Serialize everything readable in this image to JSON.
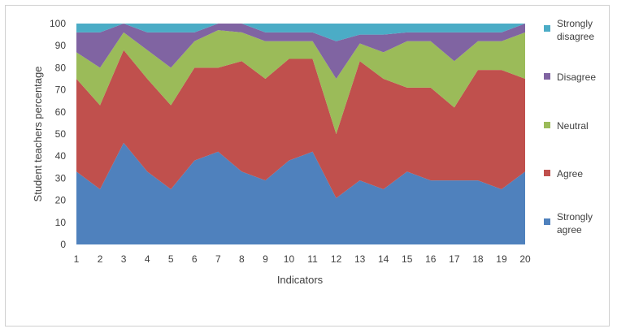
{
  "chart_data": {
    "type": "area",
    "stacked": true,
    "title": "",
    "xlabel": "Indicators",
    "ylabel": "Student teachers percentage",
    "ylim": [
      0,
      100
    ],
    "yticks": [
      0,
      10,
      20,
      30,
      40,
      50,
      60,
      70,
      80,
      90,
      100
    ],
    "x": [
      1,
      2,
      3,
      4,
      5,
      6,
      7,
      8,
      9,
      10,
      11,
      12,
      13,
      14,
      15,
      16,
      17,
      18,
      19,
      20
    ],
    "grid": false,
    "legend_position": "right",
    "series": [
      {
        "name": "Strongly agree",
        "color": "#4F81BD",
        "values": [
          33,
          25,
          46,
          33,
          25,
          38,
          42,
          33,
          29,
          38,
          42,
          21,
          29,
          25,
          33,
          29,
          29,
          29,
          25,
          33
        ]
      },
      {
        "name": "Agree",
        "color": "#C0504D",
        "values": [
          42,
          38,
          42,
          42,
          38,
          42,
          38,
          50,
          46,
          46,
          42,
          29,
          54,
          50,
          38,
          42,
          33,
          50,
          54,
          42
        ]
      },
      {
        "name": "Neutral",
        "color": "#9BBB59",
        "values": [
          12,
          17,
          8,
          13,
          17,
          12,
          17,
          13,
          17,
          8,
          8,
          25,
          8,
          12,
          21,
          21,
          21,
          13,
          13,
          21
        ]
      },
      {
        "name": "Disagree",
        "color": "#8064A2",
        "values": [
          9,
          16,
          4,
          8,
          16,
          4,
          3,
          4,
          4,
          4,
          4,
          17,
          4,
          8,
          4,
          4,
          13,
          4,
          4,
          4
        ]
      },
      {
        "name": "Strongly disagree",
        "color": "#4BACC6",
        "values": [
          4,
          4,
          0,
          4,
          4,
          4,
          0,
          0,
          4,
          4,
          4,
          8,
          5,
          5,
          4,
          4,
          4,
          4,
          4,
          0
        ]
      }
    ],
    "legend": [
      {
        "line1": "Strongly",
        "line2": "disagree",
        "series_index": 4
      },
      {
        "line1": "Disagree",
        "line2": "",
        "series_index": 3
      },
      {
        "line1": "Neutral",
        "line2": "",
        "series_index": 2
      },
      {
        "line1": "Agree",
        "line2": "",
        "series_index": 1
      },
      {
        "line1": "Strongly",
        "line2": "agree",
        "series_index": 0
      }
    ]
  }
}
